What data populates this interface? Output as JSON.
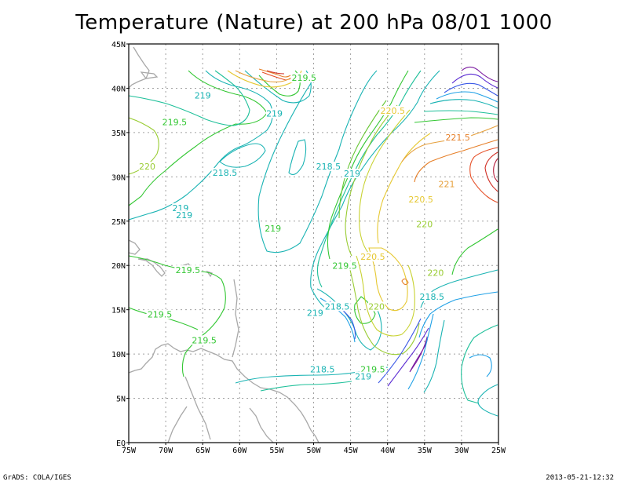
{
  "title": "Temperature (Nature) at 200 hPa 08/01 1000",
  "footer": {
    "left": "GrADS: COLA/IGES",
    "right": "2013-05-21-12:32"
  },
  "axes": {
    "x_ticks": [
      "75W",
      "70W",
      "65W",
      "60W",
      "55W",
      "50W",
      "45W",
      "40W",
      "35W",
      "30W",
      "25W"
    ],
    "y_ticks": [
      "EQ",
      "5N",
      "10N",
      "15N",
      "20N",
      "25N",
      "30N",
      "35N",
      "40N",
      "45N"
    ]
  },
  "chart_data": {
    "type": "contour-map",
    "variable": "Temperature",
    "level": "200 hPa",
    "lon_range": [
      -75,
      -25
    ],
    "lat_range": [
      0,
      45
    ],
    "grid": true,
    "contour_interval": 0.5,
    "contour_labels": [
      {
        "text": "219.5",
        "lon": -51.3,
        "lat": 41.0,
        "color": "#33c733"
      },
      {
        "text": "219",
        "lon": -65.0,
        "lat": 39.0,
        "color": "#19b3b3"
      },
      {
        "text": "219",
        "lon": -55.3,
        "lat": 37.0,
        "color": "#19b3b3"
      },
      {
        "text": "219.5",
        "lon": -68.8,
        "lat": 36.0,
        "color": "#33c733"
      },
      {
        "text": "220.5",
        "lon": -39.3,
        "lat": 37.3,
        "color": "#e6c832"
      },
      {
        "text": "221.5",
        "lon": -30.5,
        "lat": 34.3,
        "color": "#e67f28"
      },
      {
        "text": "220",
        "lon": -72.5,
        "lat": 31.0,
        "color": "#99cc33"
      },
      {
        "text": "218.5",
        "lon": -62.0,
        "lat": 30.3,
        "color": "#19b3b3"
      },
      {
        "text": "218.5",
        "lon": -48.0,
        "lat": 31.0,
        "color": "#19b3b3"
      },
      {
        "text": "219",
        "lon": -44.8,
        "lat": 30.2,
        "color": "#19b3b3"
      },
      {
        "text": "221",
        "lon": -32.0,
        "lat": 29.0,
        "color": "#e6a03c"
      },
      {
        "text": "220.5",
        "lon": -35.5,
        "lat": 27.3,
        "color": "#e6c832"
      },
      {
        "text": "219",
        "lon": -68.0,
        "lat": 26.3,
        "color": "#19b3b3"
      },
      {
        "text": "219",
        "lon": -67.5,
        "lat": 25.5,
        "color": "#19b3b3"
      },
      {
        "text": "220",
        "lon": -35.0,
        "lat": 24.5,
        "color": "#99cc33"
      },
      {
        "text": "219",
        "lon": -55.5,
        "lat": 24.0,
        "color": "#33c733"
      },
      {
        "text": "220.5",
        "lon": -42.0,
        "lat": 20.8,
        "color": "#e6c832"
      },
      {
        "text": "219.5",
        "lon": -45.8,
        "lat": 19.8,
        "color": "#33c733"
      },
      {
        "text": "219.5",
        "lon": -67.0,
        "lat": 19.3,
        "color": "#33c733"
      },
      {
        "text": "220",
        "lon": -33.5,
        "lat": 19.0,
        "color": "#99cc33"
      },
      {
        "text": "218.5",
        "lon": -34.0,
        "lat": 16.3,
        "color": "#19b3b3"
      },
      {
        "text": "218.5",
        "lon": -46.8,
        "lat": 15.2,
        "color": "#19b3b3"
      },
      {
        "text": "219",
        "lon": -49.8,
        "lat": 14.5,
        "color": "#19b3b3"
      },
      {
        "text": "220",
        "lon": -41.5,
        "lat": 15.2,
        "color": "#99cc33"
      },
      {
        "text": "219.5",
        "lon": -70.8,
        "lat": 14.3,
        "color": "#33c733"
      },
      {
        "text": "219.5",
        "lon": -64.8,
        "lat": 11.4,
        "color": "#33c733"
      },
      {
        "text": "218.5",
        "lon": -48.8,
        "lat": 8.1,
        "color": "#19b3b3"
      },
      {
        "text": "219.5",
        "lon": -42.0,
        "lat": 8.1,
        "color": "#33c733"
      },
      {
        "text": "219",
        "lon": -43.3,
        "lat": 7.3,
        "color": "#19b3b3"
      }
    ]
  }
}
